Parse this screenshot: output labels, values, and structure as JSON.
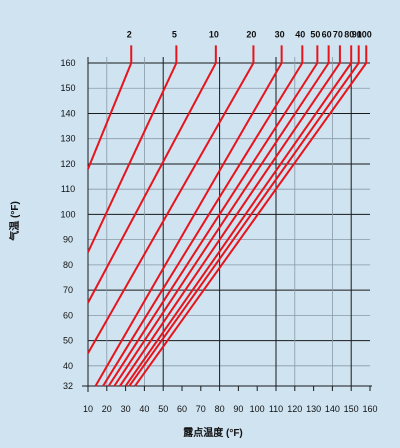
{
  "chart_data": {
    "type": "line",
    "xlabel": "露点温度 (°F)",
    "ylabel": "气温 (°F)",
    "xlim": [
      10,
      160
    ],
    "ylim": [
      32,
      160
    ],
    "x_ticks": [
      10,
      20,
      30,
      40,
      50,
      60,
      70,
      80,
      90,
      100,
      110,
      120,
      130,
      140,
      150,
      160
    ],
    "y_ticks": [
      32,
      40,
      50,
      60,
      70,
      80,
      90,
      100,
      110,
      120,
      130,
      140,
      150,
      160
    ],
    "y_tick_labels": [
      "32",
      "40",
      "50",
      "60",
      "70",
      "80",
      "90",
      "100",
      "110",
      "120",
      "130",
      "140",
      "150",
      "160"
    ],
    "x_gridlines_dark": [
      10,
      50,
      80,
      110,
      150
    ],
    "x_gridlines_light": [
      20,
      40,
      120,
      140
    ],
    "y_gridlines_dark": [
      32,
      50,
      70,
      100,
      120,
      140,
      160
    ],
    "y_gridlines_light": [
      40,
      60,
      80,
      90,
      110,
      130,
      150
    ],
    "top_value": 167,
    "series": [
      {
        "label": "2",
        "points": [
          [
            10,
            118
          ],
          [
            33,
            160
          ]
        ],
        "label_x": 33
      },
      {
        "label": "5",
        "points": [
          [
            10,
            85
          ],
          [
            57,
            160
          ]
        ],
        "label_x": 57
      },
      {
        "label": "10",
        "points": [
          [
            10,
            65
          ],
          [
            78,
            160
          ]
        ],
        "label_x": 78
      },
      {
        "label": "20",
        "points": [
          [
            10,
            45
          ],
          [
            98,
            160
          ]
        ],
        "label_x": 98
      },
      {
        "label": "30",
        "points": [
          [
            14,
            32
          ],
          [
            113,
            160
          ]
        ],
        "label_x": 113
      },
      {
        "label": "40",
        "points": [
          [
            18,
            32
          ],
          [
            124,
            160
          ]
        ],
        "label_x": 124
      },
      {
        "label": "50",
        "points": [
          [
            21,
            32
          ],
          [
            132,
            160
          ]
        ],
        "label_x": 132
      },
      {
        "label": "60",
        "points": [
          [
            24,
            32
          ],
          [
            138,
            160
          ]
        ],
        "label_x": 138
      },
      {
        "label": "70",
        "points": [
          [
            27,
            32
          ],
          [
            144,
            160
          ]
        ],
        "label_x": 144
      },
      {
        "label": "80",
        "points": [
          [
            30,
            32
          ],
          [
            150,
            160
          ]
        ],
        "label_x": 150
      },
      {
        "label": "90",
        "points": [
          [
            32,
            32
          ],
          [
            154,
            160
          ]
        ],
        "label_x": 154
      },
      {
        "label": "100",
        "points": [
          [
            35,
            32
          ],
          [
            158,
            160
          ]
        ],
        "label_x": 158
      }
    ],
    "line_color": "#e8141c",
    "grid_color_dark": "#1a1a1a",
    "grid_color_light": "#8a9aa6",
    "plot_background": "#cfe3f1"
  }
}
